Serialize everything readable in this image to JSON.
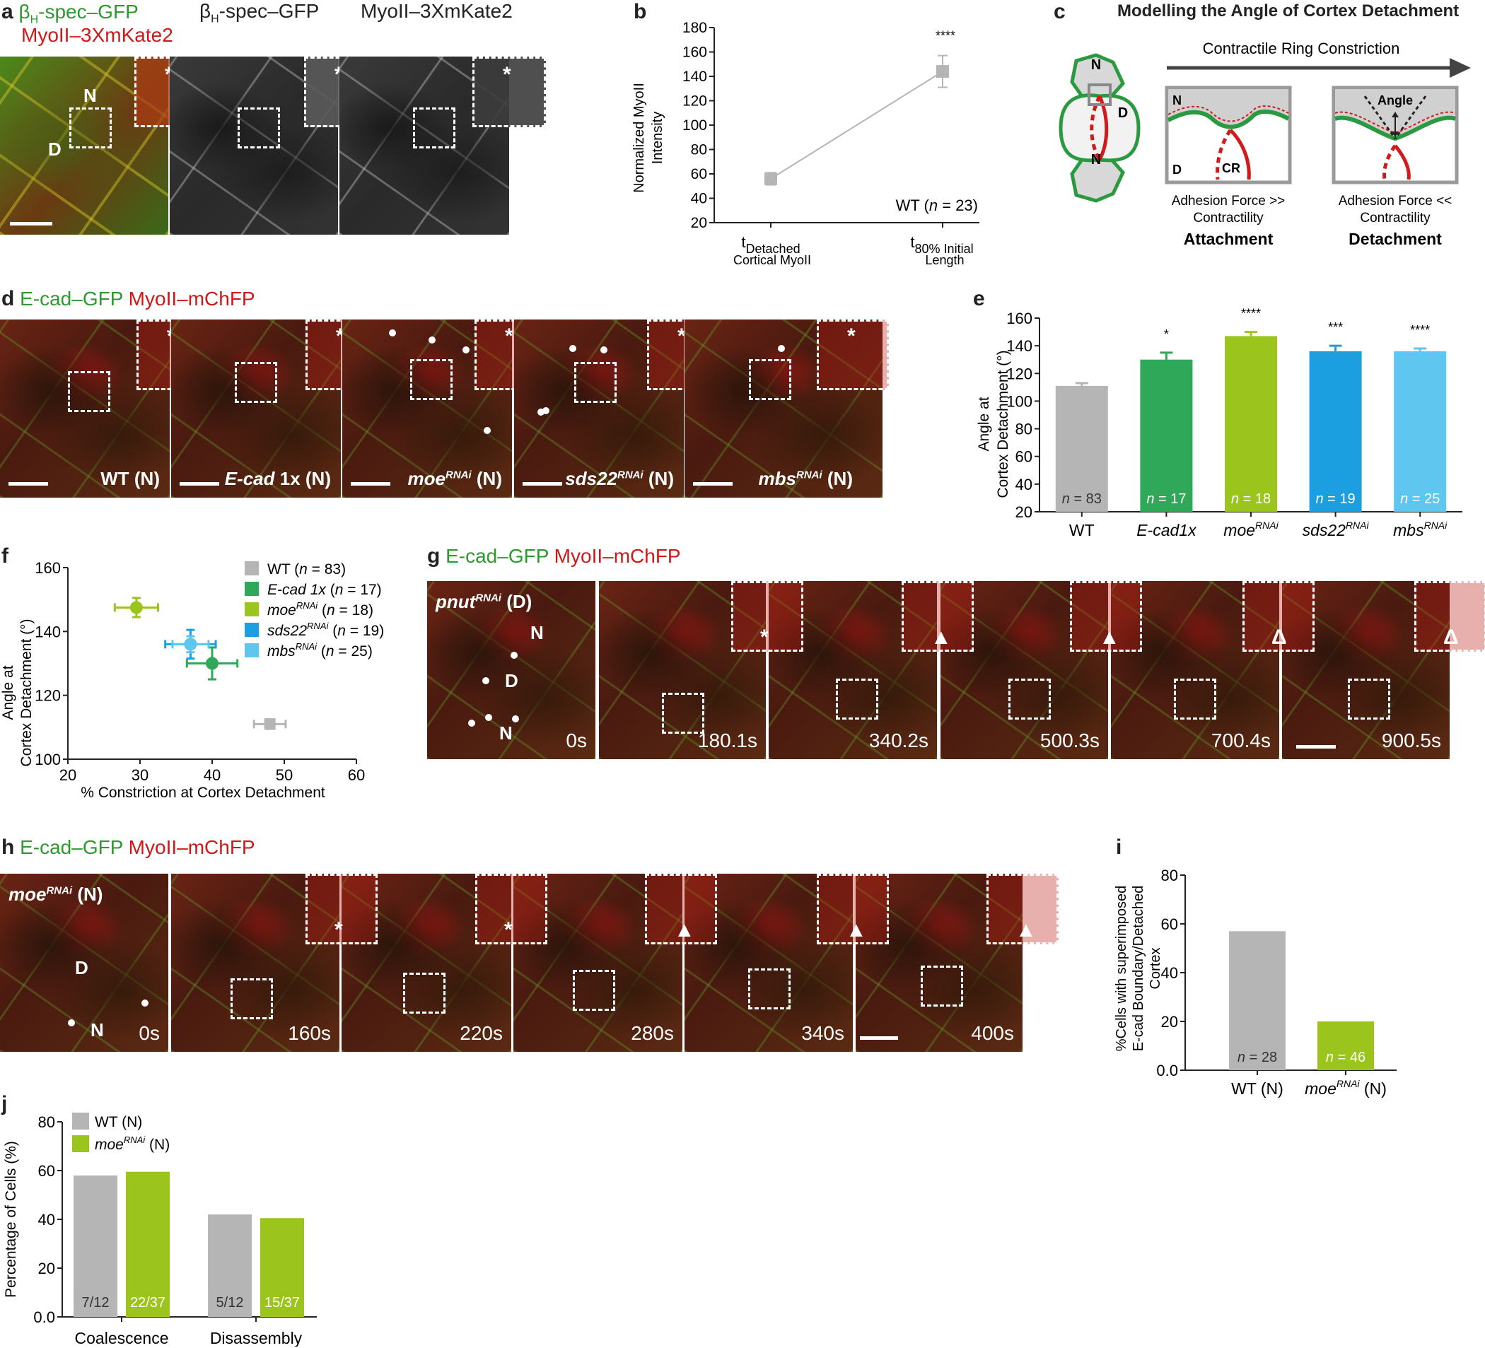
{
  "a": {
    "letter": "a",
    "label_green_pre": "β",
    "label_green_sub": "H",
    "label_green_post": "-spec–GFP",
    "label_red": "MyoII–3XmKate2",
    "label_gray1_pre": "β",
    "label_gray1_sub": "H",
    "label_gray1_post": "-spec–GFP",
    "label_gray2": "MyoII–3XmKate2",
    "n": "N",
    "d": "D",
    "star": "*"
  },
  "b": {
    "letter": "b",
    "chart_data": {
      "type": "line",
      "ylabel_line1": "Normalized MyoII",
      "ylabel_line2": "Intensity",
      "ylim": [
        20,
        180
      ],
      "yticks": [
        "20",
        "40",
        "60",
        "80",
        "100",
        "120",
        "140",
        "160",
        "180"
      ],
      "categories": [
        {
          "t": "t",
          "sub": "Detached",
          "line2": "Cortical MyoII"
        },
        {
          "t": "t",
          "sub": "80% Initial",
          "line2": "Length"
        }
      ],
      "values": [
        56,
        144
      ],
      "errors": [
        5,
        13
      ],
      "annotation": "****",
      "legend_pre": "WT (",
      "legend_n": "n",
      "legend_post": " = 23)",
      "color": "#b5b5b5"
    }
  },
  "c": {
    "letter": "c",
    "title": "Modelling the Angle of Cortex Detachment",
    "arrow_label": "Contractile Ring Constriction",
    "n": "N",
    "d": "D",
    "cr": "CR",
    "angle": "Angle",
    "left_line1": "Adhesion Force >>",
    "left_line2": "Contractility",
    "left_bold": "Attachment",
    "right_line1": "Adhesion Force <<",
    "right_line2": "Contractility",
    "right_bold": "Detachment"
  },
  "d": {
    "letter": "d",
    "label_green": "E-cad–GFP",
    "label_red": "MyoII–mChFP",
    "panels": [
      {
        "main": "WT",
        "sup": "",
        "suffix": " (N)",
        "italic": false
      },
      {
        "main": "E-cad",
        "sup": "",
        "suffix": " 1x (N)",
        "italic": true
      },
      {
        "main": "moe",
        "sup": "RNAi",
        "suffix": " (N)",
        "italic": true
      },
      {
        "main": "sds22",
        "sup": "RNAi",
        "suffix": " (N)",
        "italic": true
      },
      {
        "main": "mbs",
        "sup": "RNAi",
        "suffix": " (N)",
        "italic": true
      }
    ],
    "star": "*"
  },
  "e": {
    "letter": "e",
    "chart_data": {
      "type": "bar",
      "ylabel_line1": "Angle at",
      "ylabel_line2": "Cortex Detachment (°)",
      "ylim": [
        20,
        160
      ],
      "yticks": [
        "20",
        "40",
        "60",
        "80",
        "100",
        "120",
        "140",
        "160"
      ],
      "categories": [
        {
          "main": "WT",
          "sup": ""
        },
        {
          "main": "E-cad1x",
          "sup": ""
        },
        {
          "main": "moe",
          "sup": "RNAi"
        },
        {
          "main": "sds22",
          "sup": "RNAi"
        },
        {
          "main": "mbs",
          "sup": "RNAi"
        }
      ],
      "values": [
        111,
        130,
        147,
        136,
        136
      ],
      "errors": [
        2,
        5,
        3,
        4,
        2
      ],
      "n_values": [
        "83",
        "17",
        "18",
        "19",
        "25"
      ],
      "n_prefix": "n",
      "n_eq": " = ",
      "significance": [
        "",
        "*",
        "****",
        "***",
        "****"
      ],
      "colors": [
        "#b5b5b5",
        "#2fa85a",
        "#9bc41d",
        "#1b9fe0",
        "#5fc6ef"
      ]
    }
  },
  "f": {
    "letter": "f",
    "chart_data": {
      "type": "scatter",
      "xlabel": "% Constriction at Cortex Detachment",
      "ylabel_line1": "Angle at",
      "ylabel_line2": "Cortex Detachment (°)",
      "xlim": [
        20,
        60
      ],
      "ylim": [
        100,
        160
      ],
      "xticks": [
        "20",
        "30",
        "40",
        "50",
        "60"
      ],
      "yticks": [
        "100",
        "120",
        "140",
        "160"
      ],
      "series": [
        {
          "name": "WT",
          "sup": "",
          "italic": false,
          "n": "83",
          "x": 48,
          "y": 111,
          "xerr": 2.2,
          "yerr": 1.5,
          "color": "#b5b5b5",
          "shape": "square"
        },
        {
          "name": "E-cad 1x",
          "sup": "",
          "italic": true,
          "n": "17",
          "x": 40,
          "y": 130,
          "xerr": 3.5,
          "yerr": 5,
          "color": "#2fa85a",
          "shape": "circle"
        },
        {
          "name": "moe",
          "sup": "RNAi",
          "italic": true,
          "n": "18",
          "x": 29.5,
          "y": 147.5,
          "xerr": 3,
          "yerr": 3,
          "color": "#9bc41d",
          "shape": "circle"
        },
        {
          "name": "sds22",
          "sup": "RNAi",
          "italic": true,
          "n": "19",
          "x": 37,
          "y": 136,
          "xerr": 3.5,
          "yerr": 4.5,
          "color": "#1b9fe0",
          "shape": "circle"
        },
        {
          "name": "mbs",
          "sup": "RNAi",
          "italic": true,
          "n": "25",
          "x": 37,
          "y": 136,
          "xerr": 2.5,
          "yerr": 2.5,
          "color": "#5fc6ef",
          "shape": "circle"
        }
      ],
      "legend_n": "n",
      "legend_eq": " = "
    }
  },
  "g": {
    "letter": "g",
    "label_green": "E-cad–GFP",
    "label_red": "MyoII–mChFP",
    "first_main": "pnut",
    "first_sup": "RNAi",
    "first_suffix": " (D)",
    "n": "N",
    "d": "D",
    "times": [
      "0s",
      "180.1s",
      "340.2s",
      "500.3s",
      "700.4s",
      "900.5s"
    ],
    "marks": [
      "",
      "*",
      "▲",
      "▲",
      "Δ",
      "Δ"
    ]
  },
  "h": {
    "letter": "h",
    "label_green": "E-cad–GFP",
    "label_red": "MyoII–mChFP",
    "first_main": "moe",
    "first_sup": "RNAi",
    "first_suffix": " (N)",
    "n": "N",
    "d": "D",
    "times": [
      "0s",
      "160s",
      "220s",
      "280s",
      "340s",
      "400s"
    ],
    "marks": [
      "",
      "*",
      "*",
      "▲",
      "▲",
      "▲"
    ]
  },
  "i": {
    "letter": "i",
    "chart_data": {
      "type": "bar",
      "ylabel_line1": "%Cells with superimposed",
      "ylabel_line2": "E-cad Boundary/Detached",
      "ylabel_line3": "Cortex",
      "ylim": [
        0,
        80
      ],
      "yticks": [
        "0.0",
        "20",
        "40",
        "60",
        "80"
      ],
      "categories": [
        {
          "main": "WT",
          "sup": "",
          "suffix": " (N)"
        },
        {
          "main": "moe",
          "sup": "RNAi",
          "suffix": " (N)"
        }
      ],
      "values": [
        57,
        20
      ],
      "n_values": [
        "28",
        "46"
      ],
      "n_prefix": "n",
      "n_eq": " = ",
      "colors": [
        "#b5b5b5",
        "#9bc41d"
      ]
    }
  },
  "j": {
    "letter": "j",
    "chart_data": {
      "type": "bar",
      "ylabel": "Percentage of Cells (%)",
      "ylim": [
        0,
        80
      ],
      "yticks": [
        "0.0",
        "20",
        "40",
        "60",
        "80"
      ],
      "categories": [
        "Coalescence",
        "Disassembly"
      ],
      "series": [
        {
          "name": "WT",
          "sup": "",
          "suffix": " (N)",
          "values": [
            58,
            42
          ],
          "labels": [
            "7/12",
            "5/12"
          ],
          "color": "#b5b5b5"
        },
        {
          "name": "moe",
          "sup": "RNAi",
          "suffix": " (N)",
          "values": [
            59.5,
            40.5
          ],
          "labels": [
            "22/37",
            "15/37"
          ],
          "color": "#9bc41d"
        }
      ]
    }
  }
}
